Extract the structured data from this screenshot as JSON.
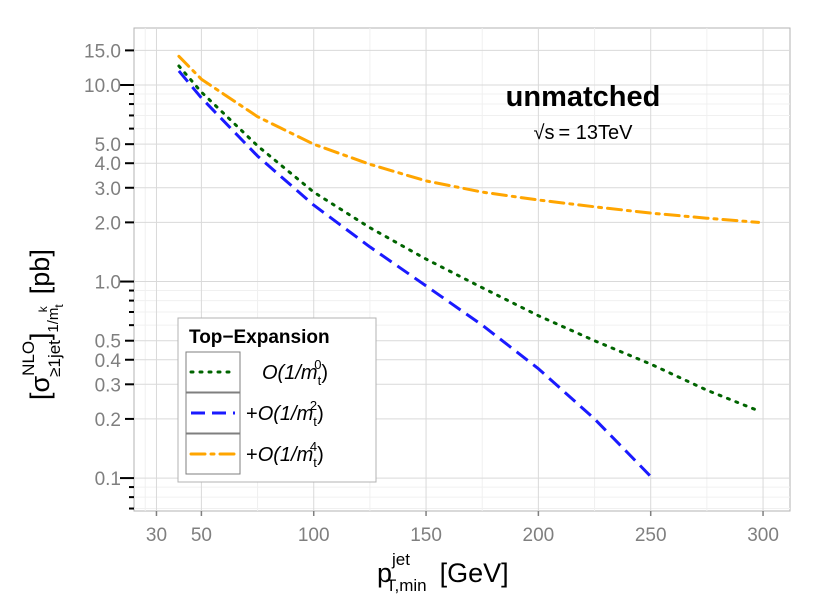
{
  "chart_data": {
    "type": "line",
    "title": "unmatched",
    "subtitle": {
      "sqrt": "√s",
      "rest": "= 13TeV"
    },
    "xlabel": {
      "main": "p",
      "sup": "jet",
      "sub": "T,min",
      "unit": "[GeV]"
    },
    "ylabel": {
      "bracket_open": "[",
      "sigma": "σ",
      "sup": "NLO",
      "sub": "≥1jet",
      "bracket_close": "]",
      "sub2": "1/m",
      "sub2_sub": "t",
      "sub2_sup": "k",
      "unit": "[pb]"
    },
    "x_scale": "linear",
    "y_scale": "log",
    "xlim": [
      20,
      312
    ],
    "ylim": [
      0.068,
      19.5
    ],
    "x_ticks": [
      30,
      50,
      100,
      150,
      200,
      250,
      300
    ],
    "y_ticks": [
      0.1,
      0.2,
      0.3,
      0.4,
      0.5,
      1.0,
      2.0,
      3.0,
      4.0,
      5.0,
      10.0,
      15.0
    ],
    "y_tick_labels": [
      "0.1",
      "0.2",
      "0.3",
      "0.4",
      "0.5",
      "1.0",
      "2.0",
      "3.0",
      "4.0",
      "5.0",
      "10.0",
      "15.0"
    ],
    "grid": true,
    "legend": {
      "title": "Top−Expansion",
      "position": "bottom-left",
      "entries": [
        {
          "prefix": "",
          "text": "O(1/m",
          "sub": "t",
          "sup": "0",
          "close": ")"
        },
        {
          "prefix": "+",
          "text": "O(1/m",
          "sub": "t",
          "sup": "2",
          "close": ")"
        },
        {
          "prefix": "+",
          "text": "O(1/m",
          "sub": "t",
          "sup": "4",
          "close": ")"
        }
      ]
    },
    "series": [
      {
        "name": "O(1/mt^0)",
        "color": "#006400",
        "dash": "dotted",
        "x": [
          40,
          50,
          75,
          100,
          125,
          150,
          175,
          200,
          225,
          250,
          275,
          298
        ],
        "y": [
          12.5,
          9.2,
          4.9,
          2.85,
          1.88,
          1.3,
          0.93,
          0.67,
          0.5,
          0.38,
          0.28,
          0.22
        ]
      },
      {
        "name": "+O(1/mt^2)",
        "color": "#1a1aff",
        "dash": "dashed",
        "x": [
          40,
          50,
          75,
          100,
          125,
          150,
          175,
          200,
          225,
          250
        ],
        "y": [
          11.8,
          8.6,
          4.35,
          2.45,
          1.5,
          0.95,
          0.6,
          0.36,
          0.2,
          0.102
        ]
      },
      {
        "name": "+O(1/mt^4)",
        "color": "#ffa500",
        "dash": "dashdot",
        "x": [
          40,
          50,
          75,
          100,
          125,
          150,
          175,
          200,
          225,
          250,
          275,
          298
        ],
        "y": [
          14.0,
          10.7,
          6.9,
          5.0,
          3.95,
          3.25,
          2.85,
          2.6,
          2.4,
          2.23,
          2.1,
          2.0
        ]
      }
    ]
  }
}
